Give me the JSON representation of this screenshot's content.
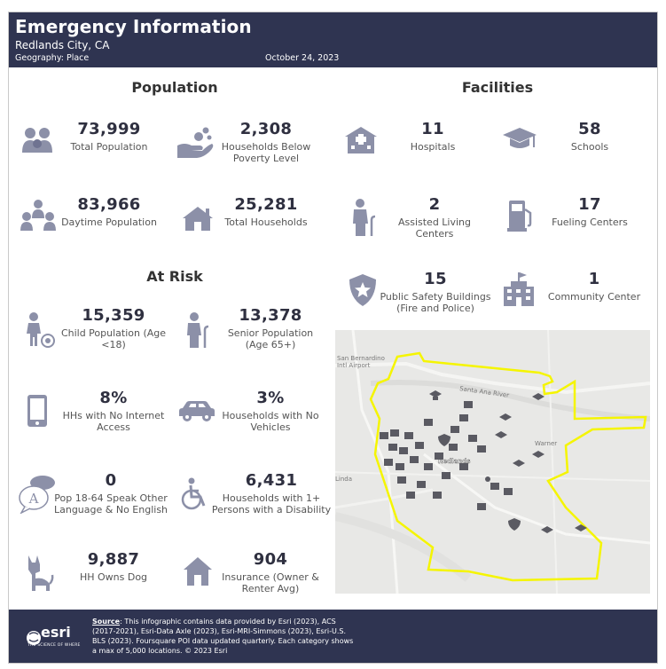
{
  "header": {
    "title": "Emergency Information",
    "location": "Redlands City, CA",
    "geography": "Geography: Place",
    "date": "October 24, 2023"
  },
  "population": {
    "title": "Population",
    "stats": [
      {
        "value": "73,999",
        "label": "Total Population",
        "icon": "people-group-icon"
      },
      {
        "value": "2,308",
        "label": "Households Below Poverty Level",
        "icon": "hand-coins-icon"
      },
      {
        "value": "83,966",
        "label": "Daytime Population",
        "icon": "daytime-people-icon"
      },
      {
        "value": "25,281",
        "label": "Total Households",
        "icon": "house-icon"
      }
    ]
  },
  "at_risk": {
    "title": "At Risk",
    "stats": [
      {
        "value": "15,359",
        "label": "Child Population (Age <18)",
        "icon": "child-ball-icon"
      },
      {
        "value": "13,378",
        "label": "Senior Population (Age 65+)",
        "icon": "senior-cane-icon"
      },
      {
        "value": "8%",
        "label": "HHs with No Internet Access",
        "icon": "phone-icon"
      },
      {
        "value": "3%",
        "label": "Households with No Vehicles",
        "icon": "car-icon"
      },
      {
        "value": "0",
        "label": "Pop 18-64 Speak Other Language & No English",
        "icon": "speech-bubble-icon"
      },
      {
        "value": "6,431",
        "label": "Households with 1+ Persons with a Disability",
        "icon": "wheelchair-icon"
      },
      {
        "value": "9,887",
        "label": "HH Owns Dog",
        "icon": "dog-icon"
      },
      {
        "value": "904",
        "label": "Insurance (Owner & Renter Avg)",
        "icon": "insured-house-icon"
      }
    ]
  },
  "facilities": {
    "title": "Facilities",
    "stats": [
      {
        "value": "11",
        "label": "Hospitals",
        "icon": "hospital-icon"
      },
      {
        "value": "58",
        "label": "Schools",
        "icon": "graduation-cap-icon"
      },
      {
        "value": "2",
        "label": "Assisted Living Centers",
        "icon": "assisted-living-icon"
      },
      {
        "value": "17",
        "label": "Fueling Centers",
        "icon": "fuel-pump-icon"
      },
      {
        "value": "15",
        "label": "Public Safety Buildings (Fire and Police)",
        "icon": "shield-star-icon"
      },
      {
        "value": "1",
        "label": "Community Center",
        "icon": "community-building-icon"
      }
    ]
  },
  "map": {
    "labels": {
      "airport": "San Bernardino Intl Airport",
      "river": "Santa Ana River",
      "warner": "Warner",
      "city": "Redlands",
      "linda": "Linda"
    },
    "boundary_color": "#f5f500"
  },
  "footer": {
    "logo": "esri",
    "tagline": "THE SCIENCE OF WHERE",
    "source_label": "Source",
    "source_text": ": This infographic contains data provided by Esri (2023), ACS (2017-2021), Esri-Data Axle (2023), Esri-MRI-Simmons (2023), Esri-U.S. BLS (2023). Foursquare POI data updated quarterly. Each category shows a max of 5,000 locations.  © 2023 Esri"
  },
  "colors": {
    "header_bg": "#2f3451",
    "icon": "#8c90a8"
  }
}
